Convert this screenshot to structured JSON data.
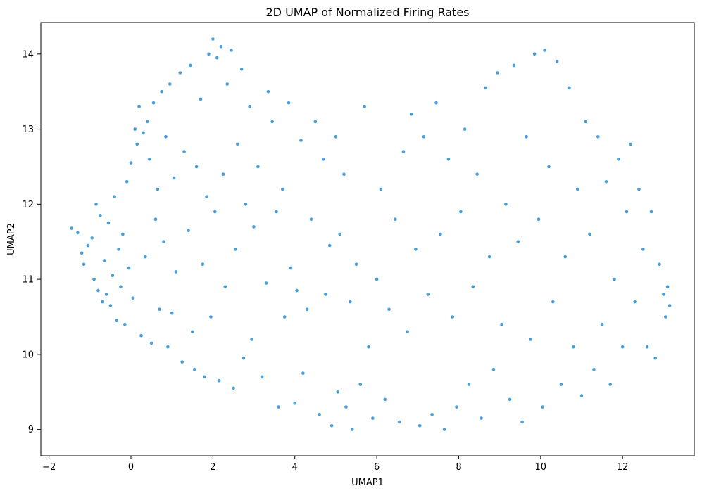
{
  "chart_data": {
    "type": "scatter",
    "title": "2D UMAP of Normalized Firing Rates",
    "xlabel": "UMAP1",
    "ylabel": "UMAP2",
    "xlim": [
      -2.2,
      13.75
    ],
    "ylim": [
      8.65,
      14.42
    ],
    "xticks": [
      -2,
      0,
      2,
      4,
      6,
      8,
      10,
      12
    ],
    "xtick_labels": [
      "−2",
      "0",
      "2",
      "4",
      "6",
      "8",
      "10",
      "12"
    ],
    "yticks": [
      9,
      10,
      11,
      12,
      13,
      14
    ],
    "ytick_labels": [
      "9",
      "10",
      "11",
      "12",
      "13",
      "14"
    ],
    "grid": false,
    "marker_color": "#4a9ed4",
    "series": [
      {
        "values": [
          [
            -1.45,
            11.68
          ],
          [
            -1.3,
            11.62
          ],
          [
            -1.2,
            11.35
          ],
          [
            -1.15,
            11.2
          ],
          [
            -1.05,
            11.45
          ],
          [
            -0.95,
            11.55
          ],
          [
            -0.9,
            11.0
          ],
          [
            -0.85,
            12.0
          ],
          [
            -0.8,
            10.85
          ],
          [
            -0.75,
            11.85
          ],
          [
            -0.7,
            10.7
          ],
          [
            -0.65,
            11.25
          ],
          [
            -0.6,
            10.8
          ],
          [
            -0.55,
            11.75
          ],
          [
            -0.5,
            10.65
          ],
          [
            -0.45,
            11.05
          ],
          [
            -0.4,
            12.1
          ],
          [
            -0.35,
            10.45
          ],
          [
            -0.3,
            11.4
          ],
          [
            -0.25,
            10.9
          ],
          [
            -0.2,
            11.6
          ],
          [
            -0.15,
            10.4
          ],
          [
            -0.1,
            12.3
          ],
          [
            -0.05,
            11.15
          ],
          [
            0.0,
            12.55
          ],
          [
            0.05,
            10.75
          ],
          [
            0.1,
            13.0
          ],
          [
            0.15,
            12.8
          ],
          [
            0.2,
            13.3
          ],
          [
            0.25,
            10.25
          ],
          [
            0.3,
            12.95
          ],
          [
            0.35,
            11.3
          ],
          [
            0.4,
            13.1
          ],
          [
            0.45,
            12.6
          ],
          [
            0.5,
            10.15
          ],
          [
            0.55,
            13.35
          ],
          [
            0.6,
            11.8
          ],
          [
            0.65,
            12.2
          ],
          [
            0.7,
            10.6
          ],
          [
            0.75,
            13.5
          ],
          [
            0.8,
            11.5
          ],
          [
            0.85,
            12.9
          ],
          [
            0.9,
            10.1
          ],
          [
            0.95,
            13.6
          ],
          [
            1.0,
            10.55
          ],
          [
            1.05,
            12.35
          ],
          [
            1.1,
            11.1
          ],
          [
            1.2,
            13.75
          ],
          [
            1.25,
            9.9
          ],
          [
            1.3,
            12.7
          ],
          [
            1.4,
            11.65
          ],
          [
            1.45,
            13.85
          ],
          [
            1.5,
            10.3
          ],
          [
            1.55,
            9.8
          ],
          [
            1.6,
            12.5
          ],
          [
            1.7,
            13.4
          ],
          [
            1.75,
            11.2
          ],
          [
            1.8,
            9.7
          ],
          [
            1.85,
            12.1
          ],
          [
            1.9,
            14.0
          ],
          [
            1.95,
            10.5
          ],
          [
            2.0,
            14.2
          ],
          [
            2.05,
            11.9
          ],
          [
            2.1,
            13.95
          ],
          [
            2.15,
            9.65
          ],
          [
            2.2,
            14.1
          ],
          [
            2.25,
            12.4
          ],
          [
            2.3,
            10.9
          ],
          [
            2.35,
            13.6
          ],
          [
            2.45,
            14.05
          ],
          [
            2.5,
            9.55
          ],
          [
            2.55,
            11.4
          ],
          [
            2.6,
            12.8
          ],
          [
            2.7,
            13.8
          ],
          [
            2.75,
            9.95
          ],
          [
            2.8,
            12.0
          ],
          [
            2.9,
            13.3
          ],
          [
            2.95,
            10.2
          ],
          [
            3.0,
            11.7
          ],
          [
            3.1,
            12.5
          ],
          [
            3.2,
            9.7
          ],
          [
            3.3,
            10.95
          ],
          [
            3.35,
            13.5
          ],
          [
            3.45,
            13.1
          ],
          [
            3.55,
            11.9
          ],
          [
            3.6,
            9.3
          ],
          [
            3.7,
            12.2
          ],
          [
            3.75,
            10.5
          ],
          [
            3.85,
            13.35
          ],
          [
            3.9,
            11.15
          ],
          [
            4.0,
            9.35
          ],
          [
            4.05,
            10.85
          ],
          [
            4.15,
            12.85
          ],
          [
            4.2,
            9.75
          ],
          [
            4.3,
            10.6
          ],
          [
            4.4,
            11.8
          ],
          [
            4.5,
            13.1
          ],
          [
            4.6,
            9.2
          ],
          [
            4.7,
            12.6
          ],
          [
            4.75,
            10.8
          ],
          [
            4.85,
            11.45
          ],
          [
            4.9,
            9.05
          ],
          [
            5.0,
            12.9
          ],
          [
            5.05,
            9.5
          ],
          [
            5.1,
            11.6
          ],
          [
            5.2,
            12.4
          ],
          [
            5.25,
            9.3
          ],
          [
            5.35,
            10.7
          ],
          [
            5.4,
            9.0
          ],
          [
            5.5,
            11.2
          ],
          [
            5.6,
            9.6
          ],
          [
            5.7,
            13.3
          ],
          [
            5.8,
            10.1
          ],
          [
            5.9,
            9.15
          ],
          [
            6.0,
            11.0
          ],
          [
            6.1,
            12.2
          ],
          [
            6.2,
            9.4
          ],
          [
            6.3,
            10.6
          ],
          [
            6.45,
            11.8
          ],
          [
            6.55,
            9.1
          ],
          [
            6.65,
            12.7
          ],
          [
            6.75,
            10.3
          ],
          [
            6.85,
            13.2
          ],
          [
            6.95,
            11.4
          ],
          [
            7.05,
            9.05
          ],
          [
            7.15,
            12.9
          ],
          [
            7.25,
            10.8
          ],
          [
            7.35,
            9.2
          ],
          [
            7.45,
            13.35
          ],
          [
            7.55,
            11.6
          ],
          [
            7.65,
            9.0
          ],
          [
            7.75,
            12.6
          ],
          [
            7.85,
            10.5
          ],
          [
            7.95,
            9.3
          ],
          [
            8.05,
            11.9
          ],
          [
            8.15,
            13.0
          ],
          [
            8.25,
            9.6
          ],
          [
            8.35,
            10.9
          ],
          [
            8.45,
            12.4
          ],
          [
            8.55,
            9.15
          ],
          [
            8.65,
            13.55
          ],
          [
            8.75,
            11.3
          ],
          [
            8.85,
            9.8
          ],
          [
            8.95,
            13.75
          ],
          [
            9.05,
            10.4
          ],
          [
            9.15,
            12.0
          ],
          [
            9.25,
            9.4
          ],
          [
            9.35,
            13.85
          ],
          [
            9.45,
            11.5
          ],
          [
            9.55,
            9.1
          ],
          [
            9.65,
            12.9
          ],
          [
            9.75,
            10.2
          ],
          [
            9.85,
            14.0
          ],
          [
            9.95,
            11.8
          ],
          [
            10.05,
            9.3
          ],
          [
            10.1,
            14.05
          ],
          [
            10.2,
            12.5
          ],
          [
            10.3,
            10.7
          ],
          [
            10.4,
            13.9
          ],
          [
            10.5,
            9.6
          ],
          [
            10.6,
            11.3
          ],
          [
            10.7,
            13.55
          ],
          [
            10.8,
            10.1
          ],
          [
            10.9,
            12.2
          ],
          [
            11.0,
            9.45
          ],
          [
            11.1,
            13.1
          ],
          [
            11.2,
            11.6
          ],
          [
            11.3,
            9.8
          ],
          [
            11.4,
            12.9
          ],
          [
            11.5,
            10.4
          ],
          [
            11.6,
            12.3
          ],
          [
            11.7,
            9.6
          ],
          [
            11.8,
            11.0
          ],
          [
            11.9,
            12.6
          ],
          [
            12.0,
            10.1
          ],
          [
            12.1,
            11.9
          ],
          [
            12.2,
            12.8
          ],
          [
            12.3,
            10.7
          ],
          [
            12.4,
            12.2
          ],
          [
            12.5,
            11.4
          ],
          [
            12.6,
            10.1
          ],
          [
            12.7,
            11.9
          ],
          [
            12.8,
            9.95
          ],
          [
            12.9,
            11.2
          ],
          [
            13.0,
            10.8
          ],
          [
            13.05,
            10.5
          ],
          [
            13.1,
            10.9
          ],
          [
            13.15,
            10.65
          ]
        ]
      }
    ]
  }
}
